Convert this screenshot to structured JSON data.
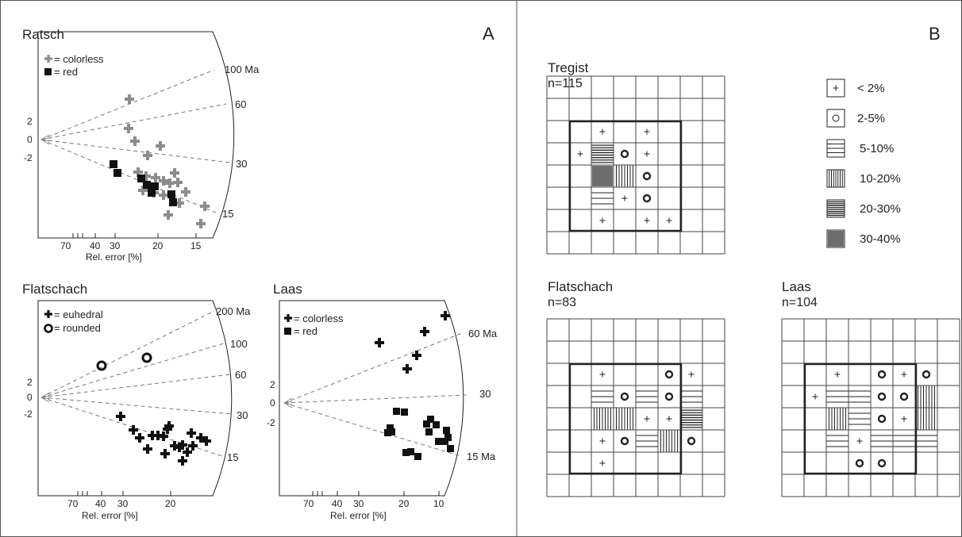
{
  "panels": {
    "a_label": "A",
    "b_label": "B"
  },
  "radial_plots": [
    {
      "id": "ratsch",
      "title": "Ratsch",
      "xlabel": "Rel. error [%]",
      "x_ticks": [
        "70",
        "40",
        "30",
        "20",
        "15"
      ],
      "y_ticks": [
        "2",
        "0",
        "-2"
      ],
      "age_labels": [
        "100 Ma",
        "60",
        "30",
        "15"
      ],
      "legend": [
        {
          "marker": "plus",
          "color": "#8c8c8c",
          "label": "= colorless"
        },
        {
          "marker": "square",
          "color": "#111111",
          "label": "= red"
        }
      ]
    },
    {
      "id": "flatschach",
      "title": "Flatschach",
      "xlabel": "Rel. error [%]",
      "x_ticks": [
        "70",
        "40",
        "30",
        "20"
      ],
      "y_ticks": [
        "2",
        "0",
        "-2"
      ],
      "age_labels": [
        "200 Ma",
        "100",
        "60",
        "30",
        "15"
      ],
      "legend": [
        {
          "marker": "plus",
          "color": "#111111",
          "label": "= euhedral"
        },
        {
          "marker": "ring",
          "color": "#111111",
          "label": "= rounded"
        }
      ]
    },
    {
      "id": "laas",
      "title": "Laas",
      "xlabel": "Rel. error [%]",
      "x_ticks": [
        "70",
        "40",
        "30",
        "20",
        "10"
      ],
      "y_ticks": [
        "2",
        "0",
        "-2"
      ],
      "age_labels": [
        "60 Ma",
        "30",
        "15 Ma"
      ],
      "legend": [
        {
          "marker": "plus",
          "color": "#111111",
          "label": "= colorless"
        },
        {
          "marker": "square",
          "color": "#111111",
          "label": "= red"
        }
      ]
    }
  ],
  "grids": [
    {
      "id": "tregist",
      "title": "Tregist",
      "n": "n=115"
    },
    {
      "id": "flatschach",
      "title": "Flatschach",
      "n": "n=83"
    },
    {
      "id": "laas",
      "title": "Laas",
      "n": "n=104"
    }
  ],
  "grid_legend": [
    {
      "symbol": "plus",
      "label": "< 2%"
    },
    {
      "symbol": "ring",
      "label": "2-5%"
    },
    {
      "symbol": "hlines-wide",
      "label": "5-10%"
    },
    {
      "symbol": "vlines",
      "label": "10-20%"
    },
    {
      "symbol": "hlines-dense",
      "label": "20-30%"
    },
    {
      "symbol": "filled",
      "label": "30-40%"
    }
  ]
}
